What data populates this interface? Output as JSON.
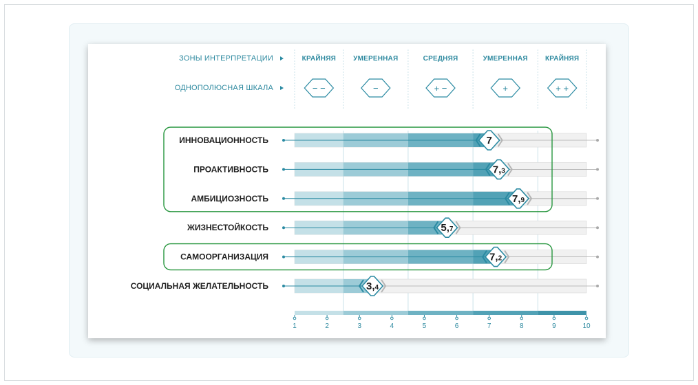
{
  "header": {
    "zones_label": "ЗОНЫ ИНТЕРПРЕТАЦИИ",
    "scale_label": "ОДНОПОЛЮСНАЯ ШКАЛА"
  },
  "zones": [
    {
      "label": "КРАЙНЯЯ",
      "symbol": "− −",
      "from": 0.5,
      "to": 2.5
    },
    {
      "label": "УМЕРЕННАЯ",
      "symbol": "−",
      "from": 2.5,
      "to": 4.5
    },
    {
      "label": "СРЕДНЯЯ",
      "symbol": "+ −",
      "from": 4.5,
      "to": 6.5
    },
    {
      "label": "УМЕРЕННАЯ",
      "symbol": "+",
      "from": 6.5,
      "to": 8.5
    },
    {
      "label": "КРАЙНЯЯ",
      "symbol": "+ +",
      "from": 8.5,
      "to": 10
    }
  ],
  "chart_data": {
    "type": "bar",
    "orientation": "horizontal",
    "categories": [
      "ИННОВАЦИОННОСТЬ",
      "ПРОАКТИВНОСТЬ",
      "АМБИЦИОЗНОСТЬ",
      "ЖИЗНЕСТОЙКОСТЬ",
      "САМООРГАНИЗАЦИЯ",
      "СОЦИАЛЬНАЯ ЖЕЛАТЕЛЬНОСТЬ"
    ],
    "values": [
      7,
      7.3,
      7.9,
      5.7,
      7.2,
      3.4
    ],
    "value_labels": [
      {
        "int": "7",
        "frac": ""
      },
      {
        "int": "7,",
        "frac": "3"
      },
      {
        "int": "7,",
        "frac": "9"
      },
      {
        "int": "5,",
        "frac": "7"
      },
      {
        "int": "7,",
        "frac": "2"
      },
      {
        "int": "3,",
        "frac": "4"
      }
    ],
    "xlim": [
      1,
      10
    ],
    "ticks": [
      "1",
      "2",
      "3",
      "4",
      "5",
      "6",
      "7",
      "8",
      "9",
      "10"
    ],
    "highlight_groups": [
      [
        0,
        2
      ],
      [
        4,
        4
      ]
    ],
    "colors": {
      "zone1": "#c4e0e7",
      "zone2": "#9ccbd7",
      "zone3": "#6eb2c3",
      "zone4": "#52a2b6",
      "zone5": "#3e93a9",
      "track": "#f1f1f1",
      "accent": "#2a8aa2",
      "highlight": "#27963e",
      "separator": "#c9e1e8"
    }
  }
}
